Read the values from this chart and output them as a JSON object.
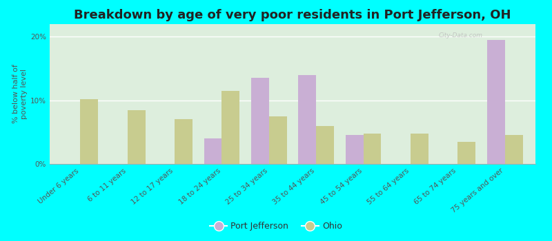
{
  "title": "Breakdown by age of very poor residents in Port Jefferson, OH",
  "ylabel": "% below half of\npoverty level",
  "categories": [
    "Under 6 years",
    "6 to 11 years",
    "12 to 17 years",
    "18 to 24 years",
    "25 to 34 years",
    "35 to 44 years",
    "45 to 54 years",
    "55 to 64 years",
    "65 to 74 years",
    "75 years and over"
  ],
  "port_jefferson": [
    0,
    0,
    0,
    4.0,
    13.5,
    14.0,
    4.5,
    0,
    0,
    19.5
  ],
  "ohio": [
    10.2,
    8.5,
    7.0,
    11.5,
    7.5,
    6.0,
    4.8,
    4.8,
    3.5,
    4.5
  ],
  "port_jefferson_color": "#c9afd4",
  "ohio_color": "#c8cc8f",
  "background_color": "#00ffff",
  "plot_bg_top": "#ddeedd",
  "plot_bg_bottom": "#f0f5ec",
  "ylim": [
    0,
    22
  ],
  "yticks": [
    0,
    10,
    20
  ],
  "ytick_labels": [
    "0%",
    "10%",
    "20%"
  ],
  "bar_width": 0.38,
  "title_fontsize": 13,
  "axis_label_fontsize": 8,
  "tick_fontsize": 7.5,
  "legend_fontsize": 9,
  "watermark_text": "City-Data.com"
}
